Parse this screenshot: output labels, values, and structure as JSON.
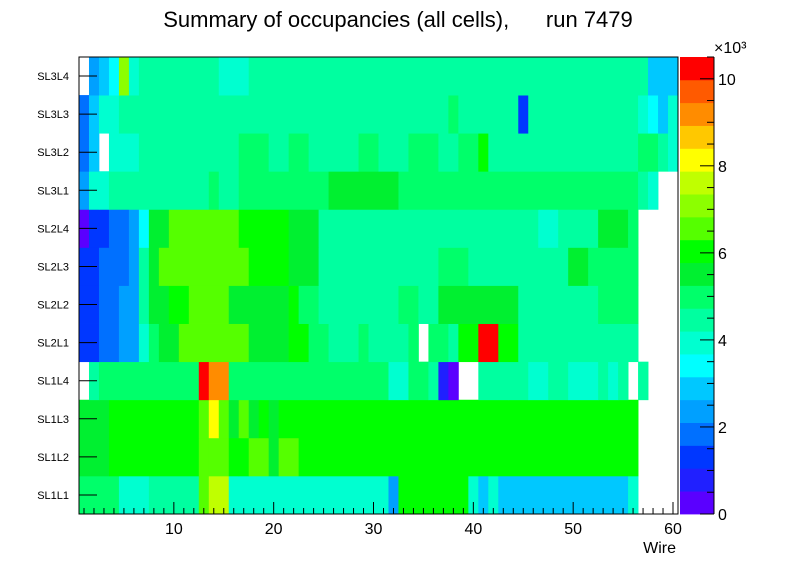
{
  "chart_data": {
    "type": "heatmap",
    "title": "Summary of occupancies (all cells),      run 7479",
    "xlabel": "Wire",
    "ylabel": "",
    "xlim": [
      0.5,
      60.5
    ],
    "x_ticks": [
      10,
      20,
      30,
      40,
      50,
      60
    ],
    "x_tick_labels": [
      "10",
      "20",
      "30",
      "40",
      "50",
      "60"
    ],
    "row_labels": [
      "SL1L1",
      "SL1L2",
      "SL1L3",
      "SL1L4",
      "SL2L1",
      "SL2L2",
      "SL2L3",
      "SL2L4",
      "SL3L1",
      "SL3L2",
      "SL3L3",
      "SL3L4"
    ],
    "colorbar": {
      "min": 0,
      "max": 10.5,
      "multiplier_label": "×10³",
      "ticks": [
        0,
        2,
        4,
        6,
        8,
        10
      ],
      "tick_labels": [
        "0",
        "2",
        "4",
        "6",
        "8",
        "10"
      ]
    },
    "value_units": "thousands of hits",
    "rows": {
      "SL1L1": [
        {
          "from": 1,
          "to": 4,
          "value": 5.0
        },
        {
          "from": 5,
          "to": 6,
          "value": 4.1
        },
        {
          "from": 7,
          "to": 7,
          "value": 3.7
        },
        {
          "from": 8,
          "to": 11,
          "value": 4.6
        },
        {
          "from": 12,
          "to": 12,
          "value": 4.4
        },
        {
          "from": 13,
          "to": 13,
          "value": 6.5
        },
        {
          "from": 14,
          "to": 15,
          "value": 7.8
        },
        {
          "from": 16,
          "to": 22,
          "value": 4.1
        },
        {
          "from": 23,
          "to": 31,
          "value": 3.8
        },
        {
          "from": 32,
          "to": 32,
          "value": 2.4
        },
        {
          "from": 33,
          "to": 39,
          "value": 5.9
        },
        {
          "from": 40,
          "to": 40,
          "value": 4.0
        },
        {
          "from": 41,
          "to": 41,
          "value": 2.8
        },
        {
          "from": 42,
          "to": 42,
          "value": 3.8
        },
        {
          "from": 43,
          "to": 55,
          "value": 3.1
        },
        {
          "from": 56,
          "to": 56,
          "value": 3.8
        }
      ],
      "SL1L2": [
        {
          "from": 1,
          "to": 3,
          "value": 5.3
        },
        {
          "from": 4,
          "to": 12,
          "value": 6.0
        },
        {
          "from": 13,
          "to": 13,
          "value": 6.3
        },
        {
          "from": 14,
          "to": 15,
          "value": 6.8
        },
        {
          "from": 16,
          "to": 16,
          "value": 6.2
        },
        {
          "from": 17,
          "to": 17,
          "value": 5.8
        },
        {
          "from": 18,
          "to": 19,
          "value": 6.7
        },
        {
          "from": 20,
          "to": 20,
          "value": 5.6
        },
        {
          "from": 21,
          "to": 22,
          "value": 6.3
        },
        {
          "from": 23,
          "to": 56,
          "value": 6.0
        }
      ],
      "SL1L3": [
        {
          "from": 1,
          "to": 3,
          "value": 5.4
        },
        {
          "from": 4,
          "to": 12,
          "value": 6.0
        },
        {
          "from": 13,
          "to": 13,
          "value": 6.6
        },
        {
          "from": 14,
          "to": 14,
          "value": 8.0
        },
        {
          "from": 15,
          "to": 15,
          "value": 6.3
        },
        {
          "from": 16,
          "to": 16,
          "value": 5.7
        },
        {
          "from": 17,
          "to": 17,
          "value": 6.4
        },
        {
          "from": 18,
          "to": 18,
          "value": 5.6
        },
        {
          "from": 19,
          "to": 19,
          "value": 6.2
        },
        {
          "from": 20,
          "to": 20,
          "value": 5.5
        },
        {
          "from": 21,
          "to": 56,
          "value": 6.0
        }
      ],
      "SL1L4": [
        {
          "from": 2,
          "to": 2,
          "value": 4.3
        },
        {
          "from": 3,
          "to": 4,
          "value": 4.8
        },
        {
          "from": 5,
          "to": 10,
          "value": 5.0
        },
        {
          "from": 11,
          "to": 12,
          "value": 5.2
        },
        {
          "from": 13,
          "to": 13,
          "value": 10.2
        },
        {
          "from": 14,
          "to": 15,
          "value": 9.0
        },
        {
          "from": 16,
          "to": 31,
          "value": 5.0
        },
        {
          "from": 32,
          "to": 33,
          "value": 4.1
        },
        {
          "from": 34,
          "to": 35,
          "value": 4.8
        },
        {
          "from": 36,
          "to": 36,
          "value": 4.2
        },
        {
          "from": 37,
          "to": 37,
          "value": 0.9
        },
        {
          "from": 38,
          "to": 38,
          "value": 0.4
        },
        {
          "from": 41,
          "to": 43,
          "value": 4.2
        },
        {
          "from": 44,
          "to": 45,
          "value": 4.4
        },
        {
          "from": 46,
          "to": 47,
          "value": 3.8
        },
        {
          "from": 48,
          "to": 49,
          "value": 4.4
        },
        {
          "from": 50,
          "to": 52,
          "value": 3.8
        },
        {
          "from": 53,
          "to": 53,
          "value": 4.2
        },
        {
          "from": 54,
          "to": 54,
          "value": 3.8
        },
        {
          "from": 55,
          "to": 55,
          "value": 4.4
        },
        {
          "from": 57,
          "to": 57,
          "value": 4.2
        }
      ],
      "SL2L1": [
        {
          "from": 1,
          "to": 2,
          "value": 1.3
        },
        {
          "from": 3,
          "to": 4,
          "value": 1.6
        },
        {
          "from": 5,
          "to": 6,
          "value": 2.1
        },
        {
          "from": 7,
          "to": 7,
          "value": 4.1
        },
        {
          "from": 8,
          "to": 8,
          "value": 5.2
        },
        {
          "from": 9,
          "to": 10,
          "value": 5.5
        },
        {
          "from": 11,
          "to": 17,
          "value": 6.6
        },
        {
          "from": 18,
          "to": 21,
          "value": 5.5
        },
        {
          "from": 22,
          "to": 23,
          "value": 5.9
        },
        {
          "from": 24,
          "to": 25,
          "value": 5.2
        },
        {
          "from": 26,
          "to": 28,
          "value": 4.4
        },
        {
          "from": 29,
          "to": 29,
          "value": 5.2
        },
        {
          "from": 30,
          "to": 31,
          "value": 4.4
        },
        {
          "from": 32,
          "to": 33,
          "value": 4.6
        },
        {
          "from": 34,
          "to": 34,
          "value": 5.1
        },
        {
          "from": 36,
          "to": 37,
          "value": 5.2
        },
        {
          "from": 38,
          "to": 38,
          "value": 4.7
        },
        {
          "from": 39,
          "to": 40,
          "value": 5.8
        },
        {
          "from": 41,
          "to": 42,
          "value": 10.1
        },
        {
          "from": 43,
          "to": 44,
          "value": 5.8
        },
        {
          "from": 45,
          "to": 56,
          "value": 4.5
        }
      ],
      "SL2L2": [
        {
          "from": 1,
          "to": 2,
          "value": 1.3
        },
        {
          "from": 3,
          "to": 4,
          "value": 1.7
        },
        {
          "from": 5,
          "to": 5,
          "value": 2.2
        },
        {
          "from": 6,
          "to": 6,
          "value": 2.5
        },
        {
          "from": 7,
          "to": 7,
          "value": 4.2
        },
        {
          "from": 8,
          "to": 9,
          "value": 5.5
        },
        {
          "from": 10,
          "to": 10,
          "value": 6.2
        },
        {
          "from": 11,
          "to": 11,
          "value": 5.8
        },
        {
          "from": 12,
          "to": 15,
          "value": 6.8
        },
        {
          "from": 16,
          "to": 21,
          "value": 5.6
        },
        {
          "from": 22,
          "to": 22,
          "value": 6.2
        },
        {
          "from": 23,
          "to": 24,
          "value": 5.2
        },
        {
          "from": 25,
          "to": 32,
          "value": 4.5
        },
        {
          "from": 33,
          "to": 34,
          "value": 5.2
        },
        {
          "from": 35,
          "to": 36,
          "value": 4.5
        },
        {
          "from": 37,
          "to": 44,
          "value": 5.3
        },
        {
          "from": 45,
          "to": 52,
          "value": 4.5
        },
        {
          "from": 53,
          "to": 56,
          "value": 5.1
        }
      ],
      "SL2L3": [
        {
          "from": 1,
          "to": 2,
          "value": 1.4
        },
        {
          "from": 3,
          "to": 5,
          "value": 1.9
        },
        {
          "from": 6,
          "to": 6,
          "value": 2.5
        },
        {
          "from": 7,
          "to": 7,
          "value": 4.2
        },
        {
          "from": 8,
          "to": 8,
          "value": 5.5
        },
        {
          "from": 9,
          "to": 17,
          "value": 6.5
        },
        {
          "from": 18,
          "to": 21,
          "value": 6.1
        },
        {
          "from": 22,
          "to": 24,
          "value": 5.5
        },
        {
          "from": 25,
          "to": 36,
          "value": 4.5
        },
        {
          "from": 37,
          "to": 39,
          "value": 5.2
        },
        {
          "from": 40,
          "to": 49,
          "value": 4.5
        },
        {
          "from": 50,
          "to": 51,
          "value": 5.5
        },
        {
          "from": 52,
          "to": 56,
          "value": 5.0
        }
      ],
      "SL2L4": [
        {
          "from": 1,
          "to": 1,
          "value": 0.0
        },
        {
          "from": 2,
          "to": 3,
          "value": 1.4
        },
        {
          "from": 4,
          "to": 5,
          "value": 1.9
        },
        {
          "from": 6,
          "to": 6,
          "value": 2.4
        },
        {
          "from": 7,
          "to": 7,
          "value": 3.5
        },
        {
          "from": 8,
          "to": 9,
          "value": 5.5
        },
        {
          "from": 10,
          "to": 16,
          "value": 6.6
        },
        {
          "from": 17,
          "to": 21,
          "value": 6.0
        },
        {
          "from": 22,
          "to": 24,
          "value": 5.5
        },
        {
          "from": 25,
          "to": 37,
          "value": 4.5
        },
        {
          "from": 38,
          "to": 46,
          "value": 4.6
        },
        {
          "from": 47,
          "to": 48,
          "value": 4.0
        },
        {
          "from": 49,
          "to": 52,
          "value": 4.6
        },
        {
          "from": 53,
          "to": 54,
          "value": 5.3
        },
        {
          "from": 55,
          "to": 55,
          "value": 5.7
        },
        {
          "from": 56,
          "to": 56,
          "value": 5.1
        }
      ],
      "SL3L1": [
        {
          "from": 1,
          "to": 1,
          "value": 2.4
        },
        {
          "from": 2,
          "to": 2,
          "value": 3.8
        },
        {
          "from": 3,
          "to": 3,
          "value": 4.1
        },
        {
          "from": 4,
          "to": 13,
          "value": 4.6
        },
        {
          "from": 14,
          "to": 14,
          "value": 5.1
        },
        {
          "from": 15,
          "to": 16,
          "value": 4.6
        },
        {
          "from": 17,
          "to": 25,
          "value": 4.8
        },
        {
          "from": 26,
          "to": 32,
          "value": 5.3
        },
        {
          "from": 33,
          "to": 38,
          "value": 4.8
        },
        {
          "from": 39,
          "to": 44,
          "value": 4.8
        },
        {
          "from": 45,
          "to": 46,
          "value": 5.2
        },
        {
          "from": 47,
          "to": 48,
          "value": 4.8
        },
        {
          "from": 49,
          "to": 56,
          "value": 4.8
        },
        {
          "from": 57,
          "to": 57,
          "value": 4.4
        },
        {
          "from": 58,
          "to": 58,
          "value": 3.9
        }
      ],
      "SL3L2": [
        {
          "from": 1,
          "to": 1,
          "value": 1.8
        },
        {
          "from": 2,
          "to": 2,
          "value": 2.8
        },
        {
          "from": 4,
          "to": 6,
          "value": 4.1
        },
        {
          "from": 7,
          "to": 16,
          "value": 4.5
        },
        {
          "from": 17,
          "to": 19,
          "value": 5.0
        },
        {
          "from": 20,
          "to": 21,
          "value": 4.5
        },
        {
          "from": 22,
          "to": 23,
          "value": 5.0
        },
        {
          "from": 24,
          "to": 28,
          "value": 4.5
        },
        {
          "from": 29,
          "to": 30,
          "value": 5.0
        },
        {
          "from": 31,
          "to": 33,
          "value": 4.5
        },
        {
          "from": 34,
          "to": 36,
          "value": 5.0
        },
        {
          "from": 37,
          "to": 38,
          "value": 4.5
        },
        {
          "from": 39,
          "to": 40,
          "value": 5.2
        },
        {
          "from": 41,
          "to": 41,
          "value": 5.8
        },
        {
          "from": 42,
          "to": 43,
          "value": 4.5
        },
        {
          "from": 44,
          "to": 44,
          "value": 4.2
        },
        {
          "from": 45,
          "to": 56,
          "value": 4.5
        },
        {
          "from": 57,
          "to": 58,
          "value": 4.8
        },
        {
          "from": 59,
          "to": 59,
          "value": 4.3
        },
        {
          "from": 60,
          "to": 60,
          "value": 3.9
        }
      ],
      "SL3L3": [
        {
          "from": 1,
          "to": 1,
          "value": 1.8
        },
        {
          "from": 2,
          "to": 2,
          "value": 2.8
        },
        {
          "from": 3,
          "to": 4,
          "value": 3.9
        },
        {
          "from": 5,
          "to": 37,
          "value": 4.5
        },
        {
          "from": 38,
          "to": 38,
          "value": 4.8
        },
        {
          "from": 39,
          "to": 44,
          "value": 4.5
        },
        {
          "from": 45,
          "to": 45,
          "value": 1.1
        },
        {
          "from": 46,
          "to": 56,
          "value": 4.5
        },
        {
          "from": 57,
          "to": 57,
          "value": 4.0
        },
        {
          "from": 58,
          "to": 58,
          "value": 3.2
        },
        {
          "from": 59,
          "to": 59,
          "value": 2.8
        },
        {
          "from": 60,
          "to": 60,
          "value": 3.9
        }
      ],
      "SL3L4": [
        {
          "from": 2,
          "to": 2,
          "value": 2.3
        },
        {
          "from": 3,
          "to": 3,
          "value": 2.9
        },
        {
          "from": 4,
          "to": 4,
          "value": 3.3
        },
        {
          "from": 5,
          "to": 5,
          "value": 6.9
        },
        {
          "from": 6,
          "to": 6,
          "value": 4.0
        },
        {
          "from": 7,
          "to": 14,
          "value": 4.2
        },
        {
          "from": 15,
          "to": 17,
          "value": 3.9
        },
        {
          "from": 18,
          "to": 44,
          "value": 4.5
        },
        {
          "from": 45,
          "to": 45,
          "value": 4.2
        },
        {
          "from": 46,
          "to": 56,
          "value": 4.5
        },
        {
          "from": 57,
          "to": 57,
          "value": 4.2
        },
        {
          "from": 58,
          "to": 60,
          "value": 3.0
        }
      ]
    }
  }
}
